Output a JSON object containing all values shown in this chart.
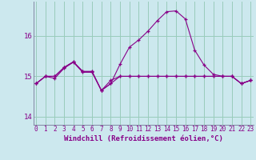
{
  "xlabel": "Windchill (Refroidissement éolien,°C)",
  "background_color": "#cce8ee",
  "grid_color": "#99ccbb",
  "line_color": "#880088",
  "hours": [
    0,
    1,
    2,
    3,
    4,
    5,
    6,
    7,
    8,
    9,
    10,
    11,
    12,
    13,
    14,
    15,
    16,
    17,
    18,
    19,
    20,
    21,
    22,
    23
  ],
  "line1_y": [
    14.82,
    15.0,
    14.95,
    15.2,
    15.35,
    15.1,
    15.1,
    14.65,
    14.9,
    15.0,
    15.0,
    15.0,
    15.0,
    15.0,
    15.0,
    15.0,
    15.0,
    15.0,
    15.0,
    15.0,
    15.0,
    15.0,
    14.82,
    14.9
  ],
  "line2_y": [
    14.82,
    15.0,
    15.0,
    15.22,
    15.36,
    15.12,
    15.12,
    14.65,
    14.82,
    15.0,
    15.0,
    15.0,
    15.0,
    15.0,
    15.0,
    15.0,
    15.0,
    15.0,
    15.0,
    15.0,
    15.0,
    15.0,
    14.82,
    14.9
  ],
  "line3_y": [
    14.82,
    15.0,
    15.0,
    15.22,
    15.36,
    15.12,
    15.12,
    14.65,
    14.82,
    15.3,
    15.72,
    15.9,
    16.12,
    16.38,
    16.6,
    16.62,
    16.42,
    15.65,
    15.28,
    15.05,
    15.0,
    15.0,
    14.82,
    14.9
  ],
  "ylim": [
    13.8,
    16.85
  ],
  "yticks": [
    14,
    15,
    16
  ],
  "xticks": [
    0,
    1,
    2,
    3,
    4,
    5,
    6,
    7,
    8,
    9,
    10,
    11,
    12,
    13,
    14,
    15,
    16,
    17,
    18,
    19,
    20,
    21,
    22,
    23
  ],
  "tick_fontsize": 5.5,
  "xlabel_fontsize": 6.5
}
